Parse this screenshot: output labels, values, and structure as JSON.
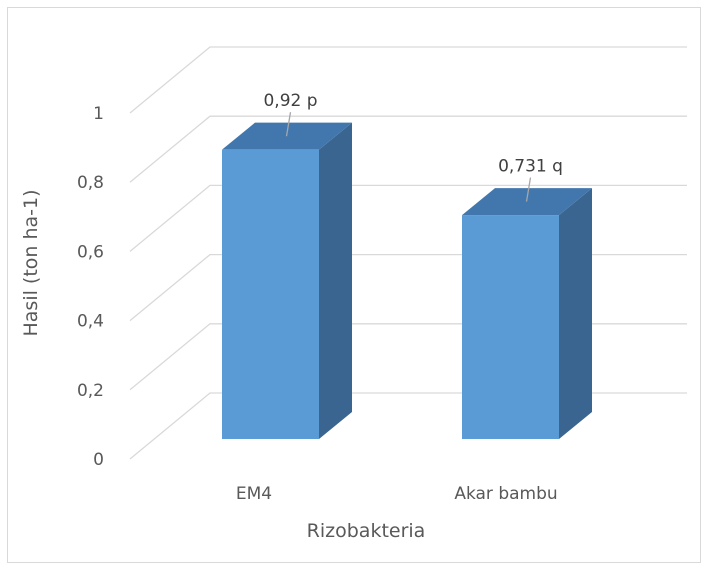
{
  "chart_data": {
    "type": "bar",
    "style": "3d-column",
    "categories": [
      "EM4",
      "Akar bambu"
    ],
    "values": [
      0.92,
      0.731
    ],
    "data_labels": [
      "0,92 p",
      "0,731 q"
    ],
    "xlabel": "Rizobakteria",
    "ylabel": "Hasil (ton ha-1)",
    "ylim": [
      0,
      1
    ],
    "yticks": [
      "0",
      "0,2",
      "0,4",
      "0,6",
      "0,8",
      "1"
    ],
    "grid": true,
    "legend": "none",
    "colors": {
      "front": "#5b9bd5",
      "side": "#3a6590",
      "top": "#4277ad",
      "grid": "#d9d9d9",
      "text": "#595959"
    }
  }
}
